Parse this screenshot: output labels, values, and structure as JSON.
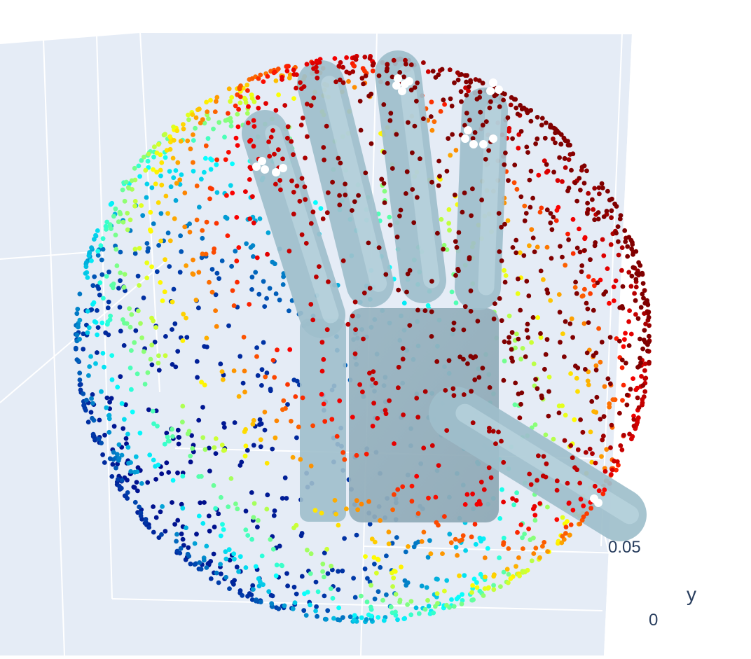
{
  "chart_data": {
    "type": "scatter3d",
    "title": "",
    "scene": {
      "background_color": "#e5ecf6",
      "gridline_color": "#ffffff",
      "grid": true,
      "axes": {
        "y": {
          "title": "y",
          "tick_values": [
            0,
            0.05
          ],
          "tick_labels": [
            "0",
            "0.05"
          ]
        }
      }
    },
    "series": [
      {
        "kind": "points",
        "count": 2400,
        "shape": "sphere",
        "center": [
          0,
          0,
          0
        ],
        "radius": 0.1,
        "marker_colorscale": "Jet",
        "colorscale_colors": [
          "#000083",
          "#003caa",
          "#05ffff",
          "#ffff00",
          "#fa0000",
          "#800000"
        ]
      },
      {
        "kind": "mesh",
        "object": "hand",
        "color": "#9fbfcc",
        "parts": [
          "palm",
          "index-finger",
          "middle-finger",
          "ring-finger",
          "little-finger",
          "thumb"
        ]
      },
      {
        "kind": "points",
        "object": "contact-points",
        "color": "#ffffff",
        "count": 24
      }
    ]
  }
}
